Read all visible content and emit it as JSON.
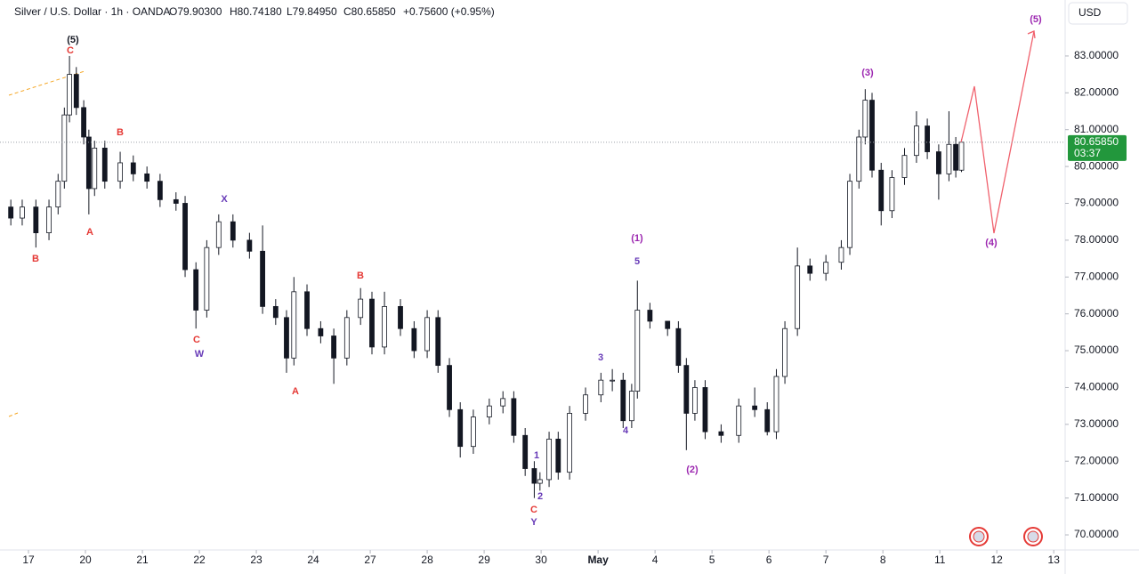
{
  "chart_data": {
    "type": "candlestick",
    "header": {
      "symbol": "Silver / U.S. Dollar · 1h · OANDA",
      "open": "O79.90300",
      "high": "H80.74180",
      "low": "L79.84950",
      "close": "C80.65850",
      "change": "+0.75600 (+0.95%)"
    },
    "currency": "USD",
    "color": "#131722",
    "x": [
      -0.31,
      -0.11,
      0.13,
      0.36,
      0.52,
      0.63,
      0.72,
      0.84,
      0.97,
      1.06,
      1.16,
      1.34,
      1.61,
      1.84,
      2.08,
      2.31,
      2.59,
      2.75,
      2.94,
      3.13,
      3.34,
      3.59,
      3.88,
      4.11,
      4.34,
      4.53,
      4.66,
      4.89,
      5.13,
      5.36,
      5.59,
      5.83,
      6.03,
      6.25,
      6.53,
      6.77,
      7.0,
      7.19,
      7.39,
      7.58,
      7.81,
      8.09,
      8.33,
      8.52,
      8.72,
      8.88,
      8.98,
      9.14,
      9.3,
      9.5,
      9.78,
      10.05,
      10.25,
      10.44,
      10.59,
      10.69,
      10.91,
      11.22,
      11.41,
      11.55,
      11.7,
      11.88,
      12.16,
      12.47,
      12.75,
      12.97,
      13.13,
      13.28,
      13.5,
      13.72,
      14.0,
      14.27,
      14.42,
      14.58,
      14.69,
      14.81,
      14.97,
      15.16,
      15.38,
      15.59,
      15.78,
      15.98,
      16.16,
      16.28,
      16.38
    ],
    "open": [
      78.9,
      78.6,
      78.9,
      78.2,
      78.9,
      79.6,
      81.4,
      82.5,
      81.6,
      80.8,
      79.4,
      80.5,
      79.6,
      80.1,
      79.8,
      79.6,
      79.1,
      79.0,
      77.2,
      76.1,
      77.8,
      78.5,
      78.0,
      77.7,
      76.2,
      75.9,
      74.8,
      76.6,
      75.6,
      75.4,
      74.8,
      75.9,
      76.4,
      75.1,
      76.2,
      75.6,
      75.0,
      75.9,
      74.6,
      73.4,
      72.4,
      73.2,
      73.5,
      73.7,
      72.7,
      71.8,
      71.4,
      71.5,
      72.6,
      71.7,
      73.3,
      73.8,
      74.2,
      74.2,
      73.1,
      73.9,
      76.1,
      75.8,
      75.6,
      74.6,
      73.3,
      74.0,
      72.8,
      72.7,
      73.5,
      73.4,
      72.8,
      74.3,
      75.6,
      77.3,
      77.1,
      77.4,
      77.8,
      79.6,
      80.8,
      81.8,
      79.9,
      78.8,
      79.7,
      80.3,
      81.1,
      80.4,
      79.8,
      80.6,
      79.9
    ],
    "high": [
      79.1,
      79.1,
      79.1,
      79.1,
      79.8,
      81.6,
      83.0,
      82.7,
      81.8,
      81.0,
      80.7,
      80.7,
      80.4,
      80.3,
      80.0,
      79.8,
      79.3,
      79.2,
      77.4,
      78.0,
      78.7,
      78.7,
      78.2,
      78.4,
      76.4,
      76.1,
      77.0,
      76.8,
      75.8,
      75.6,
      76.1,
      76.7,
      76.6,
      76.6,
      76.4,
      75.8,
      76.1,
      76.1,
      74.8,
      73.6,
      73.4,
      73.7,
      73.9,
      73.9,
      72.9,
      72.0,
      71.7,
      72.8,
      72.8,
      73.5,
      74.0,
      74.4,
      74.5,
      74.4,
      74.1,
      76.9,
      76.3,
      75.8,
      75.8,
      74.8,
      74.2,
      74.2,
      73.0,
      73.7,
      74.0,
      73.6,
      74.5,
      75.8,
      77.8,
      77.5,
      77.6,
      78.0,
      79.8,
      81.0,
      82.1,
      82.0,
      80.1,
      79.9,
      80.5,
      81.5,
      81.3,
      80.6,
      81.5,
      80.8,
      80.7418
    ],
    "low": [
      78.4,
      78.4,
      77.8,
      78.0,
      78.7,
      79.4,
      81.2,
      81.4,
      80.6,
      78.7,
      79.2,
      79.4,
      79.4,
      79.6,
      79.4,
      78.9,
      78.8,
      77.0,
      75.6,
      75.9,
      77.6,
      77.8,
      77.5,
      76.0,
      75.7,
      74.4,
      74.6,
      75.4,
      75.2,
      74.1,
      74.6,
      75.7,
      74.9,
      74.9,
      75.4,
      74.8,
      74.8,
      74.4,
      73.2,
      72.1,
      72.2,
      73.0,
      73.3,
      72.5,
      71.6,
      71.0,
      71.2,
      71.3,
      71.5,
      71.5,
      73.1,
      73.6,
      73.9,
      72.9,
      72.9,
      73.7,
      75.6,
      75.4,
      74.4,
      72.3,
      73.1,
      72.6,
      72.5,
      72.5,
      73.2,
      72.7,
      72.6,
      74.1,
      75.4,
      76.9,
      76.9,
      77.2,
      77.6,
      79.4,
      80.6,
      79.7,
      78.4,
      78.6,
      79.5,
      80.1,
      80.2,
      79.1,
      79.6,
      79.7,
      79.8495
    ],
    "close": [
      78.6,
      78.9,
      78.2,
      78.9,
      79.6,
      81.4,
      82.5,
      81.6,
      80.8,
      79.4,
      80.5,
      79.6,
      80.1,
      79.8,
      79.6,
      79.1,
      79.0,
      77.2,
      76.1,
      77.8,
      78.5,
      78.0,
      77.7,
      76.2,
      75.9,
      74.8,
      76.6,
      75.6,
      75.4,
      74.8,
      75.9,
      76.4,
      75.1,
      76.2,
      75.6,
      75.0,
      75.9,
      74.6,
      73.4,
      72.4,
      73.2,
      73.5,
      73.7,
      72.7,
      71.8,
      71.4,
      71.5,
      72.6,
      71.7,
      73.3,
      73.8,
      74.2,
      74.2,
      73.1,
      73.9,
      76.1,
      75.8,
      75.6,
      74.6,
      73.3,
      74.0,
      72.8,
      72.7,
      73.5,
      73.4,
      72.8,
      74.3,
      75.6,
      77.3,
      77.1,
      77.4,
      77.8,
      79.6,
      80.8,
      81.8,
      79.9,
      78.8,
      79.7,
      80.3,
      81.1,
      80.4,
      79.8,
      80.6,
      79.9,
      80.6585
    ],
    "xlim": [
      -0.5,
      18.2
    ],
    "xticks": [
      {
        "value": 0,
        "label": "17"
      },
      {
        "value": 1,
        "label": "20"
      },
      {
        "value": 2,
        "label": "21"
      },
      {
        "value": 3,
        "label": "22"
      },
      {
        "value": 4,
        "label": "23"
      },
      {
        "value": 5,
        "label": "24"
      },
      {
        "value": 6,
        "label": "27"
      },
      {
        "value": 7,
        "label": "28"
      },
      {
        "value": 8,
        "label": "29"
      },
      {
        "value": 9,
        "label": "30"
      },
      {
        "value": 10,
        "label": "May"
      },
      {
        "value": 11,
        "label": "4"
      },
      {
        "value": 12,
        "label": "5"
      },
      {
        "value": 13,
        "label": "6"
      },
      {
        "value": 14,
        "label": "7"
      },
      {
        "value": 15,
        "label": "8"
      },
      {
        "value": 16,
        "label": "11"
      },
      {
        "value": 17,
        "label": "12"
      },
      {
        "value": 18,
        "label": "13"
      }
    ],
    "ylim": [
      69.59,
      84.52
    ],
    "yticks": [
      {
        "value": 70,
        "label": "70.00000"
      },
      {
        "value": 71,
        "label": "71.00000"
      },
      {
        "value": 72,
        "label": "72.00000"
      },
      {
        "value": 73,
        "label": "73.00000"
      },
      {
        "value": 74,
        "label": "74.00000"
      },
      {
        "value": 75,
        "label": "75.00000"
      },
      {
        "value": 76,
        "label": "76.00000"
      },
      {
        "value": 77,
        "label": "77.00000"
      },
      {
        "value": 78,
        "label": "78.00000"
      },
      {
        "value": 79,
        "label": "79.00000"
      },
      {
        "value": 80,
        "label": "80.00000"
      },
      {
        "value": 81,
        "label": "81.00000"
      },
      {
        "value": 82,
        "label": "82.00000"
      },
      {
        "value": 83,
        "label": "83.00000"
      }
    ],
    "last_price": {
      "value": 80.6585,
      "label": "80.65850"
    },
    "countdown": "03:37",
    "last_price_color": "#22973c",
    "annotations": [
      {
        "text": "(5)",
        "color": "#131722"
      },
      {
        "text": "C",
        "color": "#e53935"
      },
      {
        "text": "B",
        "color": "#e53935"
      },
      {
        "text": "A",
        "color": "#e53935"
      },
      {
        "text": "B",
        "color": "#e53935"
      },
      {
        "text": "X",
        "color": "#673ab7"
      },
      {
        "text": "C",
        "color": "#e53935"
      },
      {
        "text": "W",
        "color": "#673ab7"
      },
      {
        "text": "A",
        "color": "#e53935"
      },
      {
        "text": "B",
        "color": "#e53935"
      },
      {
        "text": "C",
        "color": "#e53935"
      },
      {
        "text": "Y",
        "color": "#673ab7"
      },
      {
        "text": "1",
        "color": "#673ab7"
      },
      {
        "text": "2",
        "color": "#673ab7"
      },
      {
        "text": "3",
        "color": "#673ab7"
      },
      {
        "text": "4",
        "color": "#673ab7"
      },
      {
        "text": "5",
        "color": "#673ab7"
      },
      {
        "text": "(1)",
        "color": "#9c27b0"
      },
      {
        "text": "(2)",
        "color": "#9c27b0"
      },
      {
        "text": "(3)",
        "color": "#9c27b0"
      },
      {
        "text": "(4)",
        "color": "#9c27b0"
      },
      {
        "text": "(5)",
        "color": "#9c27b0"
      }
    ]
  }
}
